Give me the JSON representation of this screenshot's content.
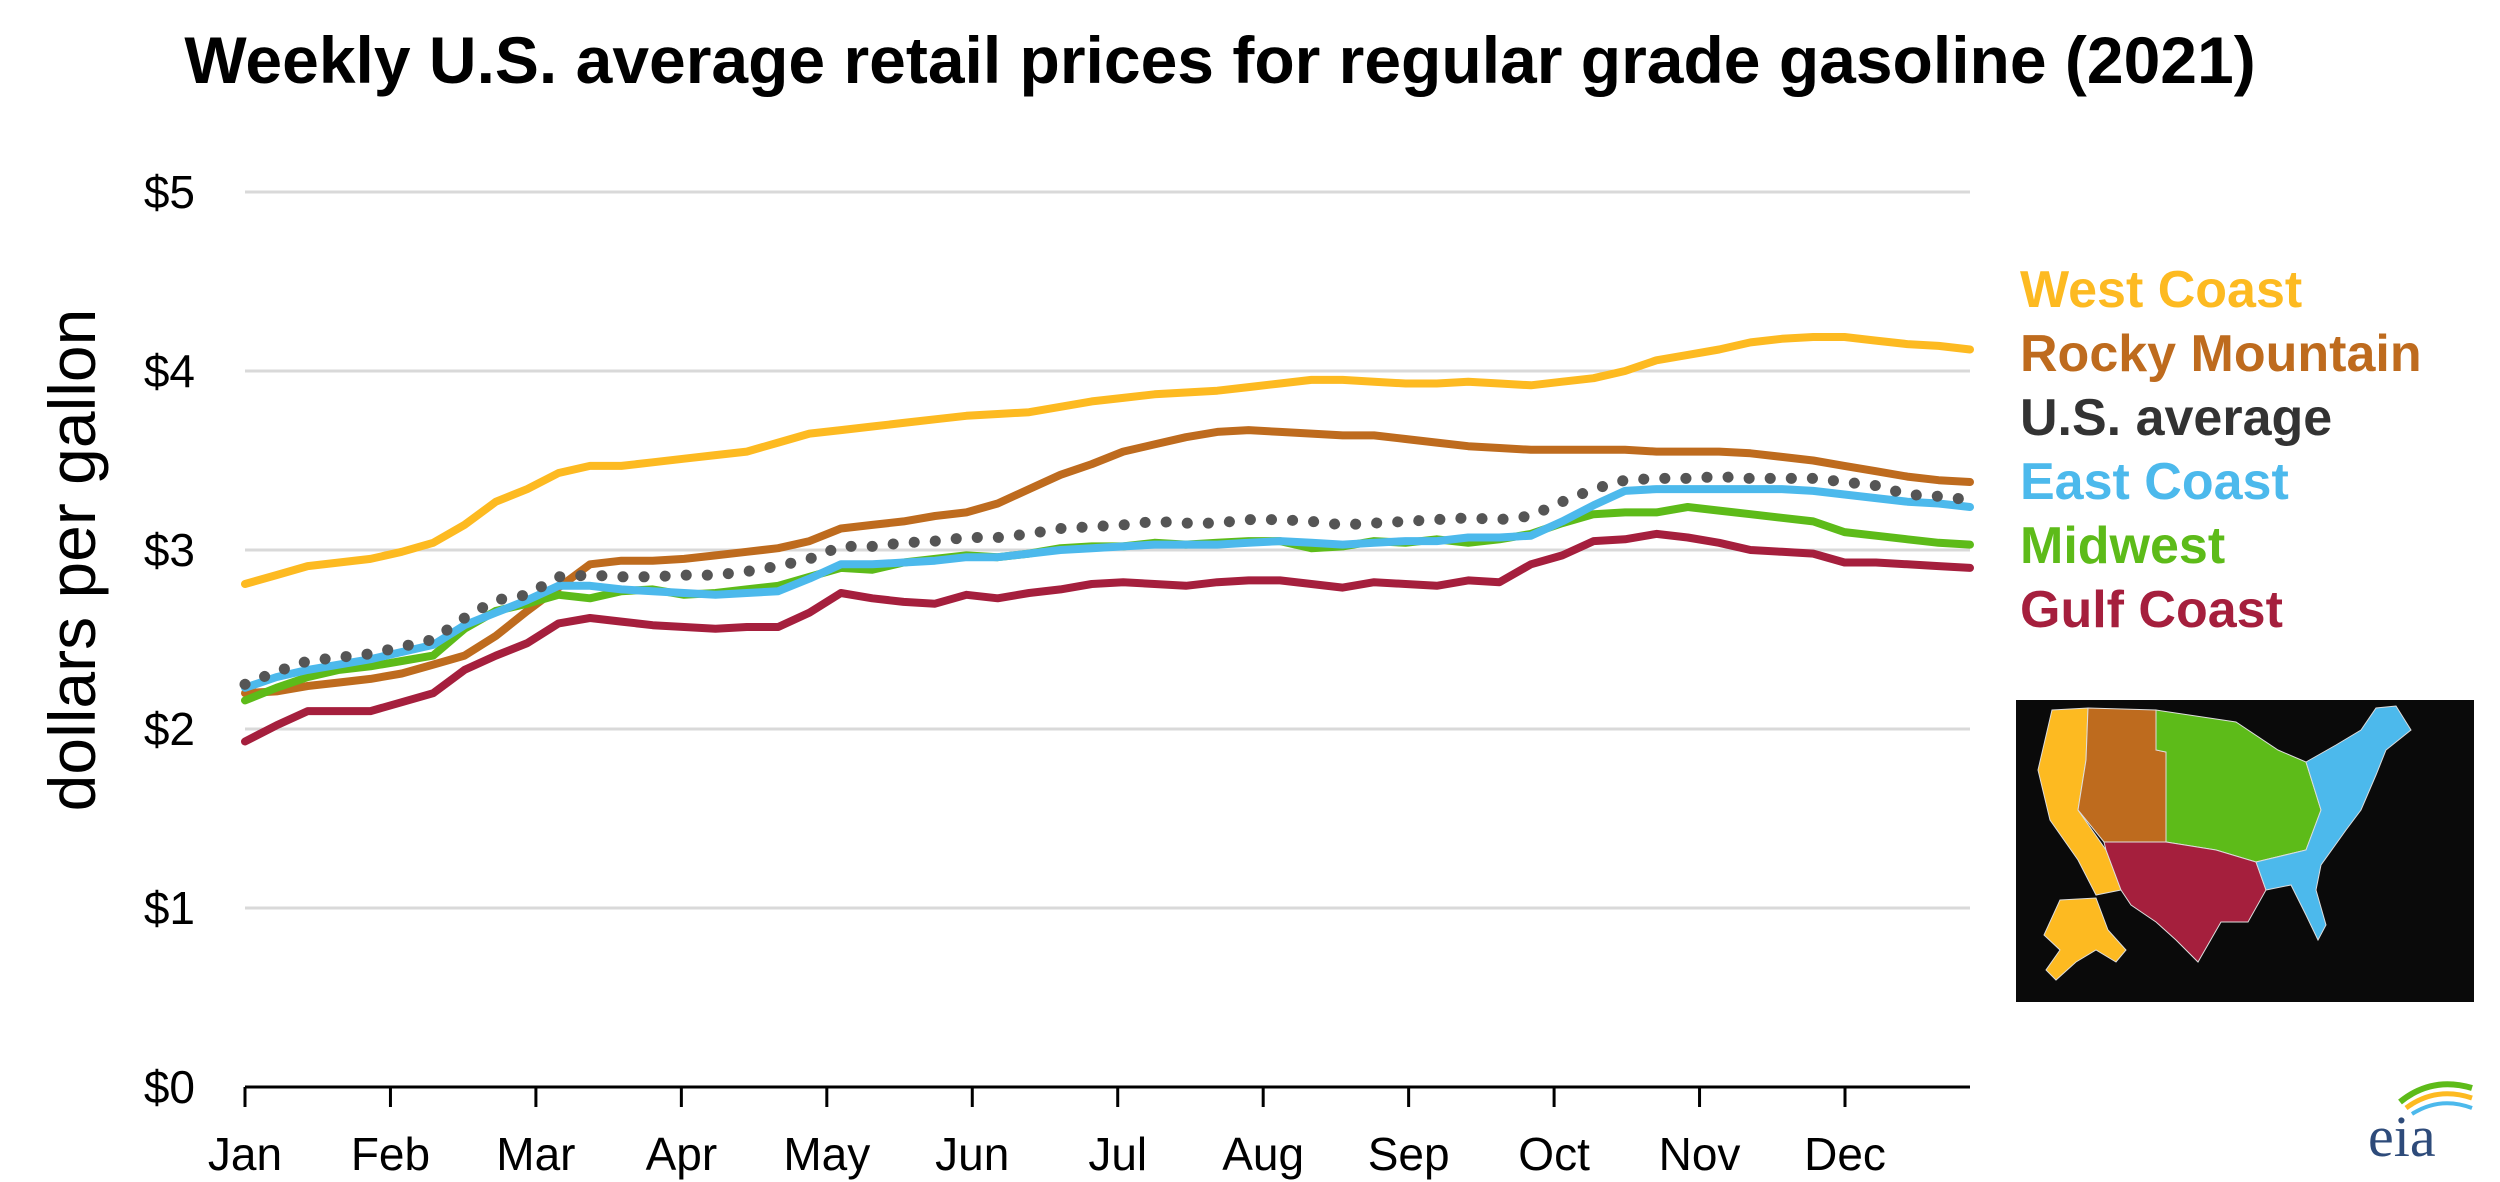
{
  "chart_data": {
    "type": "line",
    "title": "Weekly U.S. average retail prices for regular grade gasoline (2021)",
    "ylabel": "dollars per gallon",
    "ylim": [
      0,
      5
    ],
    "yticks": [
      0,
      1,
      2,
      3,
      4,
      5
    ],
    "ytick_labels": [
      "$0",
      "$1",
      "$2",
      "$3",
      "$4",
      "$5"
    ],
    "months": [
      "Jan",
      "Feb",
      "Mar",
      "Apr",
      "May",
      "Jun",
      "Jul",
      "Aug",
      "Sep",
      "Oct",
      "Nov",
      "Dec"
    ],
    "grid": true,
    "legend_position": "right",
    "series": [
      {
        "name": "West Coast",
        "color": "#FDBA21",
        "dotted": false,
        "values": [
          2.81,
          2.86,
          2.91,
          2.93,
          2.95,
          2.99,
          3.04,
          3.14,
          3.27,
          3.34,
          3.43,
          3.47,
          3.47,
          3.49,
          3.51,
          3.53,
          3.55,
          3.6,
          3.65,
          3.67,
          3.69,
          3.71,
          3.73,
          3.75,
          3.76,
          3.77,
          3.8,
          3.83,
          3.85,
          3.87,
          3.88,
          3.89,
          3.91,
          3.93,
          3.95,
          3.95,
          3.94,
          3.93,
          3.93,
          3.94,
          3.93,
          3.92,
          3.94,
          3.96,
          4.0,
          4.06,
          4.09,
          4.12,
          4.16,
          4.18,
          4.19,
          4.19,
          4.17,
          4.15,
          4.14,
          4.12
        ]
      },
      {
        "name": "Rocky Mountain",
        "color": "#BE6B1E",
        "dotted": false,
        "values": [
          2.2,
          2.21,
          2.24,
          2.26,
          2.28,
          2.31,
          2.36,
          2.41,
          2.52,
          2.66,
          2.79,
          2.92,
          2.94,
          2.94,
          2.95,
          2.97,
          2.99,
          3.01,
          3.05,
          3.12,
          3.14,
          3.16,
          3.19,
          3.21,
          3.26,
          3.34,
          3.42,
          3.48,
          3.55,
          3.59,
          3.63,
          3.66,
          3.67,
          3.66,
          3.65,
          3.64,
          3.64,
          3.62,
          3.6,
          3.58,
          3.57,
          3.56,
          3.56,
          3.56,
          3.56,
          3.55,
          3.55,
          3.55,
          3.54,
          3.52,
          3.5,
          3.47,
          3.44,
          3.41,
          3.39,
          3.38
        ]
      },
      {
        "name": "U.S. average",
        "color": "#555555",
        "dotted": true,
        "values": [
          2.25,
          2.32,
          2.38,
          2.4,
          2.42,
          2.46,
          2.5,
          2.62,
          2.72,
          2.75,
          2.85,
          2.86,
          2.85,
          2.85,
          2.86,
          2.86,
          2.88,
          2.91,
          2.95,
          3.02,
          3.02,
          3.04,
          3.05,
          3.07,
          3.07,
          3.09,
          3.12,
          3.13,
          3.14,
          3.16,
          3.15,
          3.15,
          3.17,
          3.17,
          3.16,
          3.14,
          3.15,
          3.16,
          3.17,
          3.18,
          3.17,
          3.19,
          3.27,
          3.34,
          3.39,
          3.4,
          3.4,
          3.41,
          3.4,
          3.4,
          3.4,
          3.38,
          3.36,
          3.31,
          3.3,
          3.28
        ]
      },
      {
        "name": "East Coast",
        "color": "#4CB9EC",
        "dotted": false,
        "values": [
          2.23,
          2.29,
          2.33,
          2.36,
          2.39,
          2.43,
          2.47,
          2.58,
          2.65,
          2.72,
          2.8,
          2.8,
          2.78,
          2.77,
          2.76,
          2.75,
          2.76,
          2.77,
          2.84,
          2.92,
          2.92,
          2.93,
          2.94,
          2.96,
          2.96,
          2.98,
          3.0,
          3.01,
          3.02,
          3.03,
          3.03,
          3.03,
          3.04,
          3.05,
          3.04,
          3.03,
          3.04,
          3.05,
          3.05,
          3.07,
          3.07,
          3.08,
          3.16,
          3.25,
          3.33,
          3.34,
          3.34,
          3.34,
          3.34,
          3.34,
          3.33,
          3.31,
          3.29,
          3.27,
          3.26,
          3.24
        ]
      },
      {
        "name": "Midwest",
        "color": "#5DBB19",
        "dotted": false,
        "values": [
          2.16,
          2.23,
          2.29,
          2.33,
          2.35,
          2.38,
          2.41,
          2.56,
          2.66,
          2.7,
          2.75,
          2.73,
          2.77,
          2.78,
          2.75,
          2.76,
          2.78,
          2.8,
          2.85,
          2.9,
          2.89,
          2.93,
          2.95,
          2.97,
          2.96,
          2.98,
          3.01,
          3.02,
          3.02,
          3.04,
          3.03,
          3.04,
          3.05,
          3.05,
          3.01,
          3.02,
          3.05,
          3.04,
          3.06,
          3.04,
          3.06,
          3.09,
          3.15,
          3.2,
          3.21,
          3.21,
          3.24,
          3.22,
          3.2,
          3.18,
          3.16,
          3.1,
          3.08,
          3.06,
          3.04,
          3.03
        ]
      },
      {
        "name": "Gulf Coast",
        "color": "#A51F3D",
        "dotted": false,
        "values": [
          1.93,
          2.02,
          2.1,
          2.1,
          2.1,
          2.15,
          2.2,
          2.33,
          2.41,
          2.48,
          2.59,
          2.62,
          2.6,
          2.58,
          2.57,
          2.56,
          2.57,
          2.57,
          2.65,
          2.76,
          2.73,
          2.71,
          2.7,
          2.75,
          2.73,
          2.76,
          2.78,
          2.81,
          2.82,
          2.81,
          2.8,
          2.82,
          2.83,
          2.83,
          2.81,
          2.79,
          2.82,
          2.81,
          2.8,
          2.83,
          2.82,
          2.92,
          2.97,
          3.05,
          3.06,
          3.09,
          3.07,
          3.04,
          3.0,
          2.99,
          2.98,
          2.93,
          2.93,
          2.92,
          2.91,
          2.9
        ]
      }
    ]
  },
  "map": {
    "background": "#0a0a0a",
    "region_colors": {
      "west_coast": "#FDBA21",
      "rocky_mountain": "#BE6B1E",
      "midwest": "#5DBB19",
      "gulf_coast": "#A51F3D",
      "east_coast": "#4CB9EC"
    }
  },
  "logo": {
    "text": "eia",
    "color": "#2E4B7A",
    "swoosh_colors": [
      "#5DBB19",
      "#FDBA21",
      "#4CB9EC"
    ]
  }
}
